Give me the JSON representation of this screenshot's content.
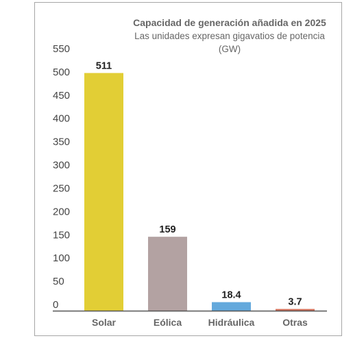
{
  "chart_data": {
    "type": "bar",
    "title": "Capacidad de generación añadida en 2025",
    "subtitle": "Las unidades expresan gigavatios de potencia (GW)",
    "categories": [
      "Solar",
      "Eólica",
      "Hidráulica",
      "Otras"
    ],
    "values": [
      511,
      159,
      18.4,
      3.7
    ],
    "value_labels": [
      "511",
      "159",
      "18.4",
      "3.7"
    ],
    "colors": [
      "#e2ce35",
      "#b3a2a2",
      "#64a9dc",
      "#d4715a"
    ],
    "ylim": [
      0,
      550
    ],
    "yticks": [
      0,
      50,
      100,
      150,
      200,
      250,
      300,
      350,
      400,
      450,
      500,
      550
    ],
    "grid": false,
    "xlabel": "",
    "ylabel": ""
  }
}
